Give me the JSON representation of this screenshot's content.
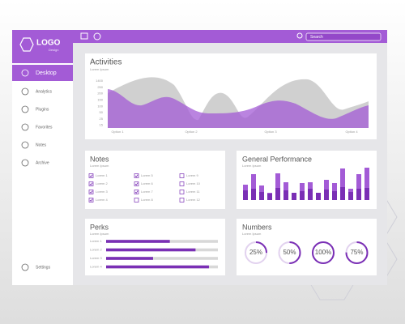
{
  "logo": {
    "title": "LOGO",
    "subtitle": "Design"
  },
  "search": "Search",
  "sidebar": {
    "items": [
      "Desktop",
      "Analytics",
      "Plugins",
      "Favorites",
      "Notes",
      "Archive"
    ],
    "active": 0,
    "settings": "Settings"
  },
  "activities": {
    "title": "Activities",
    "subtitle": "Lorem Ipsum",
    "y_labels": [
      "1400",
      "250",
      "200",
      "150",
      "100",
      "50",
      "25",
      "15"
    ],
    "x_labels": [
      "Option 1",
      "Option 2",
      "Option 3",
      "Option 4"
    ]
  },
  "notes": {
    "title": "Notes",
    "subtitle": "Lorem Ipsum",
    "items": [
      {
        "label": "Lorem 1",
        "checked": true
      },
      {
        "label": "Lorem 2",
        "checked": true
      },
      {
        "label": "Lorem 3",
        "checked": true
      },
      {
        "label": "Lorem 4",
        "checked": true
      },
      {
        "label": "Lorem 5",
        "checked": true
      },
      {
        "label": "Lorem 6",
        "checked": true
      },
      {
        "label": "Lorem 7",
        "checked": true
      },
      {
        "label": "Lorem 8",
        "checked": false
      },
      {
        "label": "Lorem 9",
        "checked": false
      },
      {
        "label": "Lorem 10",
        "checked": false
      },
      {
        "label": "Lorem 11",
        "checked": false
      },
      {
        "label": "Lorem 12",
        "checked": false
      }
    ]
  },
  "performance": {
    "title": "General Performance",
    "subtitle": "Lorem Ipsum",
    "dark": [
      12,
      14,
      10,
      8,
      15,
      12,
      9,
      11,
      14,
      9,
      13,
      11,
      16,
      10,
      14,
      15
    ],
    "light": [
      7,
      18,
      8,
      1,
      18,
      10,
      0,
      10,
      8,
      0,
      12,
      10,
      23,
      4,
      18,
      25
    ]
  },
  "perks": {
    "title": "Perks",
    "subtitle": "Lorem Ipsum",
    "items": [
      {
        "label": "Lorem 1",
        "value": 57
      },
      {
        "label": "Lorem 2",
        "value": 80
      },
      {
        "label": "Lorem 3",
        "value": 42
      },
      {
        "label": "Lorem 4",
        "value": 92
      }
    ]
  },
  "numbers": {
    "title": "Numbers",
    "subtitle": "Lorem Ipsum",
    "values": [
      25,
      50,
      100,
      75
    ],
    "value_labels": [
      "25%",
      "50%",
      "100%",
      "75%"
    ]
  }
}
